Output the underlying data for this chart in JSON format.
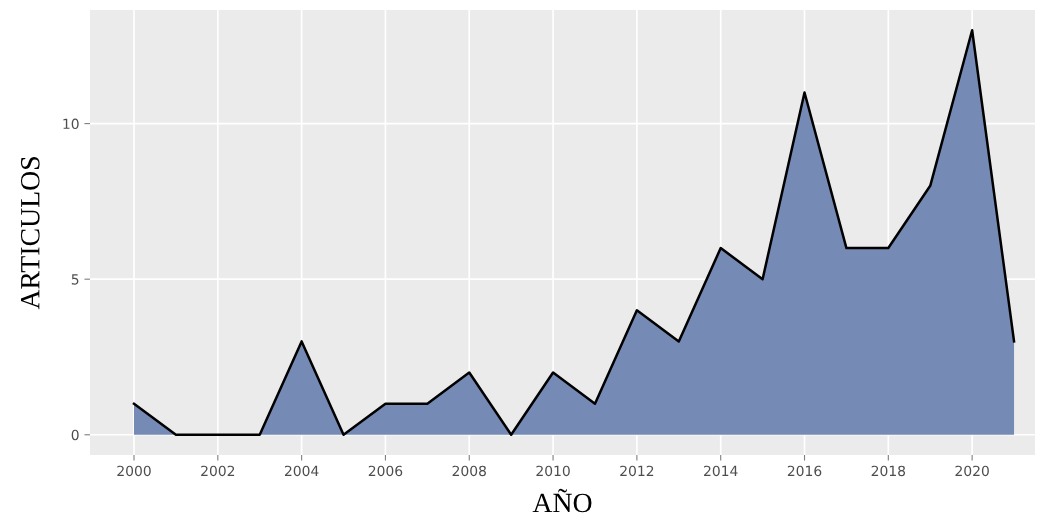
{
  "chart_data": {
    "type": "area",
    "xlabel": "AÑO",
    "ylabel": "ARTICULOS",
    "x": [
      2000,
      2001,
      2002,
      2003,
      2004,
      2005,
      2006,
      2007,
      2008,
      2009,
      2010,
      2011,
      2012,
      2013,
      2014,
      2015,
      2016,
      2017,
      2018,
      2019,
      2020,
      2021
    ],
    "series": [
      {
        "color": "#758bb5",
        "values": [
          1,
          0,
          0,
          0,
          3,
          0,
          1,
          1,
          2,
          0,
          2,
          1,
          4,
          3,
          6,
          5,
          11,
          6,
          6,
          8,
          13,
          3
        ]
      }
    ],
    "xlim": [
      1998.95,
      2021.5
    ],
    "xticks": [
      2000,
      2002,
      2004,
      2006,
      2008,
      2010,
      2012,
      2014,
      2016,
      2018,
      2020
    ],
    "ylim": [
      -0.65,
      13.65
    ],
    "yticks": [
      0,
      5,
      10
    ],
    "grid": true
  }
}
